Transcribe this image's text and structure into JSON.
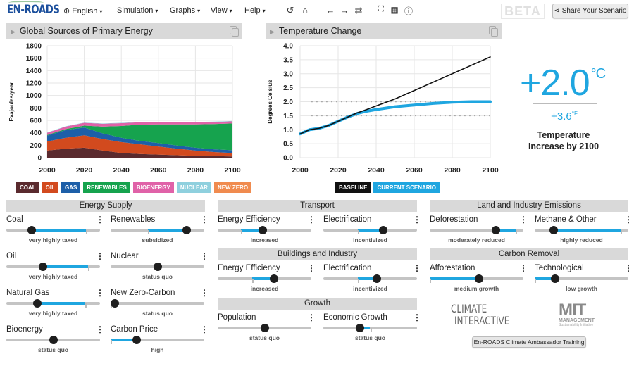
{
  "app": {
    "logo": "EN-ROADS",
    "menus": [
      {
        "label": "English",
        "icon": "globe-icon"
      },
      {
        "label": "Simulation"
      },
      {
        "label": "Graphs"
      },
      {
        "label": "View"
      },
      {
        "label": "Help"
      }
    ],
    "toolbar_icons": [
      "undo-icon",
      "home-icon",
      "back-icon",
      "forward-icon",
      "repeat-icon",
      "fullscreen-icon",
      "table-icon",
      "info-icon"
    ],
    "beta_label": "BETA",
    "share_label": "Share Your Scenario"
  },
  "panels": {
    "energy": {
      "title": "Global Sources of Primary Energy"
    },
    "temperature": {
      "title": "Temperature Change"
    }
  },
  "temperature_result": {
    "celsius": "+2.0",
    "celsius_unit": "°C",
    "fahrenheit": "+3.6",
    "fahrenheit_unit": "°F",
    "label": "Temperature Increase by 2100"
  },
  "chart_data": [
    {
      "type": "area",
      "title": "Global Sources of Primary Energy",
      "xlabel": "",
      "ylabel": "Exajoules/year",
      "ylim": [
        0,
        1800
      ],
      "yticks": [
        0,
        200,
        400,
        600,
        800,
        1000,
        1200,
        1400,
        1600,
        1800
      ],
      "xticks": [
        2000,
        2020,
        2040,
        2060,
        2080,
        2100
      ],
      "x": [
        2000,
        2010,
        2020,
        2030,
        2040,
        2050,
        2060,
        2070,
        2080,
        2090,
        2100
      ],
      "stacked": true,
      "series": [
        {
          "name": "COAL",
          "color": "#5a2a2e",
          "values": [
            115,
            145,
            160,
            115,
            75,
            60,
            50,
            40,
            30,
            25,
            20
          ]
        },
        {
          "name": "OIL",
          "color": "#d24a1e",
          "values": [
            145,
            175,
            200,
            185,
            175,
            155,
            130,
            105,
            85,
            65,
            55
          ]
        },
        {
          "name": "GAS",
          "color": "#1d5fa8",
          "values": [
            95,
            125,
            125,
            90,
            70,
            55,
            55,
            50,
            45,
            45,
            45
          ]
        },
        {
          "name": "RENEWABLES",
          "color": "#16a34e",
          "values": [
            10,
            15,
            30,
            110,
            190,
            260,
            300,
            340,
            375,
            405,
            430
          ]
        },
        {
          "name": "BIOENERGY",
          "color": "#e062a8",
          "values": [
            35,
            40,
            45,
            45,
            45,
            40,
            35,
            35,
            35,
            35,
            35
          ]
        },
        {
          "name": "NUCLEAR",
          "color": "#8fd0de",
          "values": [
            5,
            5,
            5,
            5,
            5,
            5,
            5,
            5,
            5,
            5,
            5
          ]
        },
        {
          "name": "NEW ZERO",
          "color": "#f08b4f",
          "values": [
            0,
            0,
            0,
            0,
            0,
            0,
            0,
            0,
            0,
            0,
            0
          ]
        }
      ],
      "legend_position": "bottom",
      "grid": true
    },
    {
      "type": "line",
      "title": "Temperature Change",
      "xlabel": "",
      "ylabel": "Degrees Celsius",
      "ylim": [
        0,
        4
      ],
      "yticks": [
        0.0,
        0.5,
        1.0,
        1.5,
        2.0,
        2.5,
        3.0,
        3.5,
        4.0
      ],
      "xticks": [
        2000,
        2020,
        2040,
        2060,
        2080,
        2100
      ],
      "x": [
        2000,
        2005,
        2010,
        2015,
        2020,
        2025,
        2030,
        2035,
        2040,
        2050,
        2060,
        2070,
        2080,
        2090,
        2100
      ],
      "series": [
        {
          "name": "BASELINE",
          "color": "#111111",
          "values": [
            0.85,
            1.0,
            1.05,
            1.15,
            1.3,
            1.45,
            1.6,
            1.72,
            1.85,
            2.1,
            2.4,
            2.7,
            3.0,
            3.3,
            3.6
          ]
        },
        {
          "name": "CURRENT SCENARIO",
          "color": "#1fa6e0",
          "values": [
            0.85,
            1.0,
            1.05,
            1.15,
            1.3,
            1.45,
            1.58,
            1.66,
            1.72,
            1.82,
            1.88,
            1.94,
            1.98,
            2.0,
            2.0
          ]
        }
      ],
      "reference_lines": [
        1.5,
        2.0
      ],
      "legend_position": "bottom",
      "grid": true
    }
  ],
  "sections": {
    "energy_supply": {
      "title": "Energy Supply",
      "sliders": [
        {
          "name": "Coal",
          "status": "very highly taxed",
          "value": 0.27,
          "default": 0.85
        },
        {
          "name": "Renewables",
          "status": "subsidized",
          "value": 0.81,
          "default": 0.4
        },
        {
          "name": "Oil",
          "status": "very highly taxed",
          "value": 0.39,
          "default": 0.87
        },
        {
          "name": "Nuclear",
          "status": "status quo",
          "value": 0.5,
          "default": 0.5
        },
        {
          "name": "Natural Gas",
          "status": "very highly taxed",
          "value": 0.33,
          "default": 0.84
        },
        {
          "name": "New Zero-Carbon",
          "status": "status quo",
          "value": 0.0,
          "default": 0.0
        },
        {
          "name": "Bioenergy",
          "status": "status quo",
          "value": 0.5,
          "default": 0.5
        },
        {
          "name": "Carbon Price",
          "status": "high",
          "value": 0.28,
          "default": 0.0
        }
      ]
    },
    "transport": {
      "title": "Transport",
      "sliders": [
        {
          "name": "Energy Efficiency",
          "status": "increased",
          "value": 0.48,
          "default": 0.25
        },
        {
          "name": "Electrification",
          "status": "incentivized",
          "value": 0.64,
          "default": 0.37
        }
      ]
    },
    "buildings": {
      "title": "Buildings and Industry",
      "sliders": [
        {
          "name": "Energy Efficiency",
          "status": "increased",
          "value": 0.6,
          "default": 0.37
        },
        {
          "name": "Electrification",
          "status": "incentivized",
          "value": 0.57,
          "default": 0.37
        }
      ]
    },
    "growth": {
      "title": "Growth",
      "sliders": [
        {
          "name": "Population",
          "status": "status quo",
          "value": 0.5,
          "default": 0.5
        },
        {
          "name": "Economic Growth",
          "status": "status quo",
          "value": 0.39,
          "default": 0.5
        }
      ]
    },
    "land": {
      "title": "Land and Industry Emissions",
      "sliders": [
        {
          "name": "Deforestation",
          "status": "moderately reduced",
          "value": 0.71,
          "default": 0.92
        },
        {
          "name": "Methane & Other",
          "status": "highly reduced",
          "value": 0.2,
          "default": 0.92
        }
      ]
    },
    "carbon_removal": {
      "title": "Carbon Removal",
      "sliders": [
        {
          "name": "Afforestation",
          "status": "medium growth",
          "value": 0.53,
          "default": 0.0
        },
        {
          "name": "Technological",
          "status": "low growth",
          "value": 0.22,
          "default": 0.0
        }
      ]
    }
  },
  "footer": {
    "ci_logo_line1": "CLIMATE",
    "ci_logo_line2": "INTERACTIVE",
    "mit_logo": "MIT",
    "mit_sub1": "MANAGEMENT",
    "mit_sub2": "Sustainability Initiative",
    "training_button": "En-ROADS Climate Ambassador Training"
  }
}
